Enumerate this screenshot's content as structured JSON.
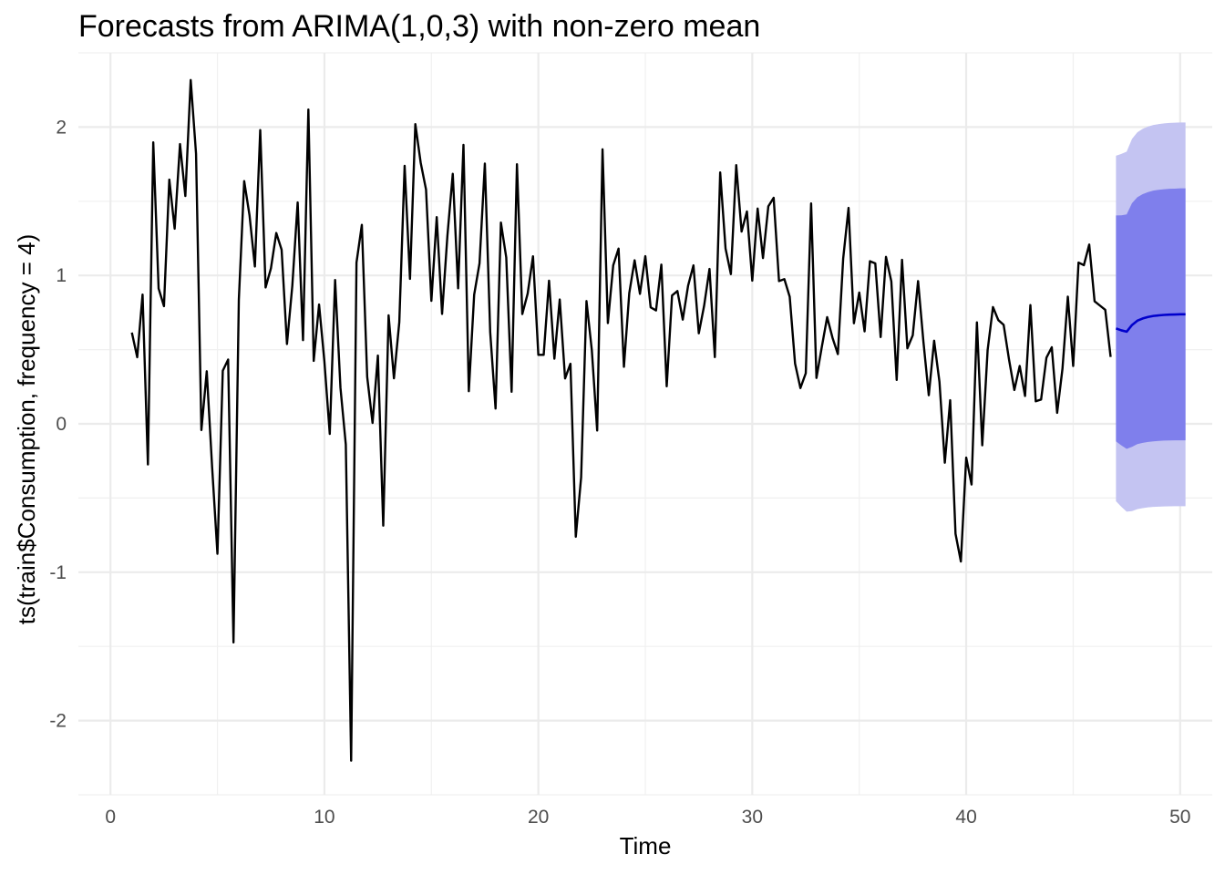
{
  "chart_data": {
    "type": "line",
    "title": "Forecasts from ARIMA(1,0,3) with non-zero mean",
    "xlabel": "Time",
    "ylabel": "ts(train$Consumption, frequency = 4)",
    "xlim": [
      -1.5,
      51.5
    ],
    "ylim": [
      -2.5,
      2.5
    ],
    "x_ticks": [
      0,
      10,
      20,
      30,
      40,
      50
    ],
    "x_tick_labels": [
      "0",
      "10",
      "20",
      "30",
      "40",
      "50"
    ],
    "y_ticks": [
      -2,
      -1,
      0,
      1,
      2
    ],
    "y_tick_labels": [
      "-2",
      "-1",
      "0",
      "1",
      "2"
    ],
    "grid": true,
    "legend": "none",
    "series": [
      {
        "role": "observed",
        "color": "#000000",
        "start": 1,
        "frequency": 4,
        "values": [
          0.615,
          0.449,
          0.871,
          -0.274,
          1.897,
          0.912,
          0.793,
          1.646,
          1.315,
          1.885,
          1.535,
          2.317,
          1.82,
          -0.042,
          0.354,
          -0.289,
          -0.876,
          0.358,
          0.433,
          -1.473,
          0.837,
          1.636,
          1.405,
          1.06,
          1.98,
          0.919,
          1.048,
          1.286,
          1.173,
          0.538,
          0.931,
          1.492,
          0.564,
          2.118,
          0.424,
          0.804,
          0.42,
          -0.068,
          0.969,
          0.243,
          -0.14,
          -2.27,
          1.087,
          1.341,
          0.316,
          0.006,
          0.46,
          -0.686,
          0.731,
          0.307,
          0.685,
          1.739,
          0.977,
          2.02,
          1.76,
          1.579,
          0.829,
          1.393,
          0.741,
          1.269,
          1.685,
          0.913,
          1.88,
          0.22,
          0.87,
          1.081,
          1.754,
          0.617,
          0.103,
          1.356,
          1.121,
          0.216,
          1.749,
          0.74,
          0.877,
          1.129,
          0.465,
          0.465,
          0.965,
          0.439,
          0.838,
          0.306,
          0.405,
          -0.761,
          -0.361,
          0.827,
          0.496,
          -0.045,
          1.85,
          0.679,
          1.068,
          1.181,
          0.384,
          0.881,
          1.102,
          0.876,
          1.13,
          0.785,
          0.764,
          1.073,
          0.253,
          0.865,
          0.895,
          0.702,
          0.931,
          1.068,
          0.61,
          0.797,
          1.044,
          0.45,
          1.694,
          1.182,
          1.009,
          1.743,
          1.296,
          1.431,
          0.965,
          1.451,
          1.117,
          1.466,
          1.523,
          0.962,
          0.975,
          0.856,
          0.406,
          0.241,
          0.341,
          1.485,
          0.309,
          0.518,
          0.719,
          0.58,
          0.47,
          1.115,
          1.455,
          0.678,
          0.885,
          0.623,
          1.096,
          1.081,
          0.585,
          1.125,
          0.96,
          0.296,
          1.105,
          0.509,
          0.596,
          0.962,
          0.553,
          0.193,
          0.56,
          0.282,
          -0.262,
          0.159,
          -0.741,
          -0.928,
          -0.228,
          -0.409,
          0.684,
          -0.145,
          0.496,
          0.787,
          0.699,
          0.667,
          0.434,
          0.228,
          0.39,
          0.188,
          0.8,
          0.152,
          0.164,
          0.446,
          0.516,
          0.074,
          0.372,
          0.857,
          0.39,
          1.087,
          1.069,
          1.208,
          0.826,
          0.797,
          0.768,
          0.451
        ]
      },
      {
        "role": "forecast",
        "color": "#0000cc",
        "start": 47,
        "frequency": 4,
        "values": [
          0.643,
          0.63,
          0.621,
          0.666,
          0.695,
          0.71,
          0.72,
          0.727,
          0.731,
          0.734,
          0.736,
          0.737,
          0.738,
          0.738
        ]
      }
    ],
    "intervals": [
      {
        "level": "80%",
        "color": "#7f7fec",
        "lower": [
          -0.118,
          -0.145,
          -0.169,
          -0.155,
          -0.137,
          -0.128,
          -0.122,
          -0.118,
          -0.115,
          -0.113,
          -0.112,
          -0.111,
          -0.111,
          -0.111
        ],
        "upper": [
          1.404,
          1.405,
          1.411,
          1.487,
          1.527,
          1.548,
          1.562,
          1.572,
          1.577,
          1.581,
          1.584,
          1.585,
          1.587,
          1.587
        ]
      },
      {
        "level": "95%",
        "color": "#c4c4f2",
        "lower": [
          -0.521,
          -0.559,
          -0.592,
          -0.588,
          -0.575,
          -0.568,
          -0.563,
          -0.56,
          -0.558,
          -0.557,
          -0.556,
          -0.555,
          -0.555,
          -0.555
        ],
        "upper": [
          1.807,
          1.819,
          1.834,
          1.92,
          1.965,
          1.988,
          2.003,
          2.014,
          2.02,
          2.025,
          2.028,
          2.029,
          2.031,
          2.031
        ]
      }
    ]
  }
}
